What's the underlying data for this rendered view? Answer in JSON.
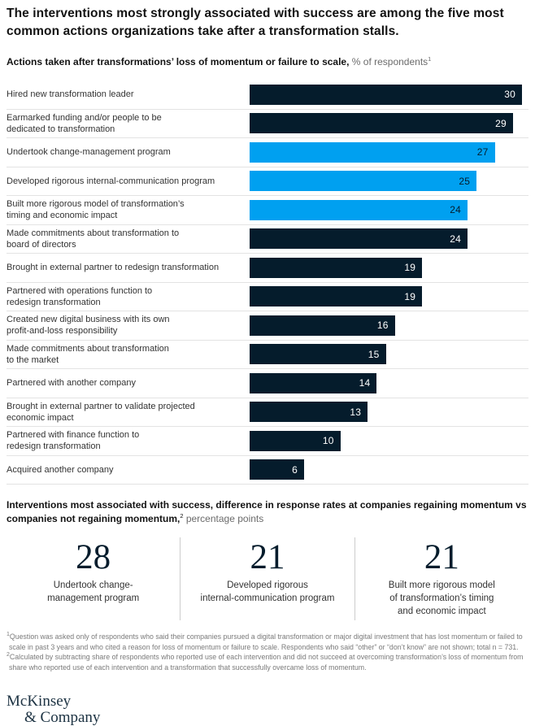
{
  "title": "The interventions most strongly associated with success are among the five most common actions organizations take after a transformation stalls.",
  "subtitle": {
    "bold": "Actions taken after transformations’ loss of momentum or failure to scale,",
    "regular": " % of respondents",
    "sup": "1"
  },
  "chart_data": {
    "type": "bar",
    "orientation": "horizontal",
    "title": "Actions taken after transformations’ loss of momentum or failure to scale",
    "xlabel": "% of respondents",
    "xlim": [
      0,
      30
    ],
    "grid": false,
    "bar_color": "#051C2C",
    "highlight_color": "#00A0F0",
    "value_color_on_dark": "#FFFFFF",
    "value_color_on_highlight": "#051C2C",
    "separator_color": "#E3E3E3",
    "rows": [
      {
        "label_lines": [
          "Hired new transformation leader"
        ],
        "value": 30,
        "highlight": false
      },
      {
        "label_lines": [
          "Earmarked funding and/or people to be",
          "dedicated to transformation"
        ],
        "value": 29,
        "highlight": false
      },
      {
        "label_lines": [
          "Undertook change-management program"
        ],
        "value": 27,
        "highlight": true
      },
      {
        "label_lines": [
          "Developed rigorous internal-communication program"
        ],
        "value": 25,
        "highlight": true
      },
      {
        "label_lines": [
          "Built more rigorous model of transformation’s",
          "timing and economic impact"
        ],
        "value": 24,
        "highlight": true
      },
      {
        "label_lines": [
          "Made commitments about transformation to",
          "board of directors"
        ],
        "value": 24,
        "highlight": false
      },
      {
        "label_lines": [
          "Brought in external partner to redesign transformation"
        ],
        "value": 19,
        "highlight": false
      },
      {
        "label_lines": [
          "Partnered with operations function to",
          "redesign transformation"
        ],
        "value": 19,
        "highlight": false
      },
      {
        "label_lines": [
          "Created new digital business with its own",
          "profit-and-loss responsibility"
        ],
        "value": 16,
        "highlight": false
      },
      {
        "label_lines": [
          "Made commitments about transformation",
          "to the market"
        ],
        "value": 15,
        "highlight": false
      },
      {
        "label_lines": [
          "Partnered with another company"
        ],
        "value": 14,
        "highlight": false
      },
      {
        "label_lines": [
          "Brought in external partner to validate projected",
          "economic impact"
        ],
        "value": 13,
        "highlight": false
      },
      {
        "label_lines": [
          "Partnered with finance function to",
          "redesign transformation"
        ],
        "value": 10,
        "highlight": false
      },
      {
        "label_lines": [
          "Acquired another company"
        ],
        "value": 6,
        "highlight": false
      }
    ]
  },
  "section2": {
    "heading_bold": "Interventions most associated with success, difference in response rates at companies regaining momentum vs companies not regaining momentum,",
    "sup": "2",
    "heading_regular": " percentage points",
    "stats": [
      {
        "value": "28",
        "label_lines": [
          "Undertook change-",
          "management program"
        ]
      },
      {
        "value": "21",
        "label_lines": [
          "Developed rigorous",
          "internal-communication program"
        ]
      },
      {
        "value": "21",
        "label_lines": [
          "Built more rigorous model",
          "of transformation’s timing",
          "and economic impact"
        ]
      }
    ]
  },
  "footnotes": [
    {
      "sup": "1",
      "text": "Question was asked only of respondents who said their companies pursued a digital transformation or major digital investment that has lost momentum or failed to scale in past 3 years and who cited a reason for loss of momentum or failure to scale. Respondents who said “other” or “don’t know” are not shown; total n = 731."
    },
    {
      "sup": "2",
      "text": "Calculated by subtracting share of respondents who reported use of each intervention and did not succeed at overcoming transformation’s loss of momentum from share who reported use of each intervention and a transformation that successfully overcame loss of momentum."
    }
  ],
  "logo": {
    "line1": "McKinsey",
    "line2": "& Company"
  }
}
